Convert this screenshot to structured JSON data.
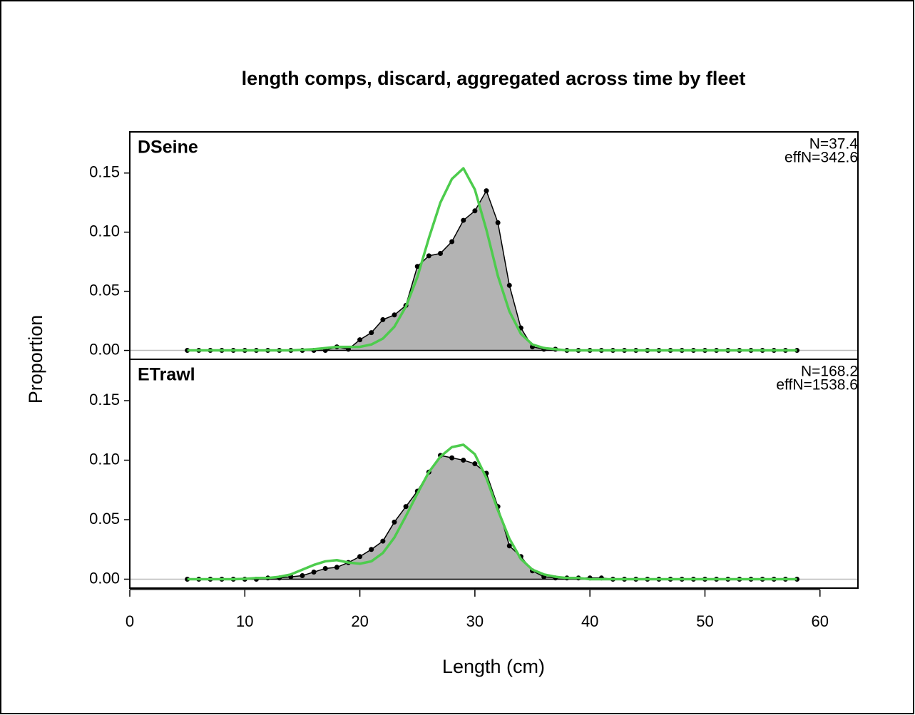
{
  "chart_data": {
    "type": "line",
    "title": "length comps, discard, aggregated across time by fleet",
    "x_label": "Length (cm)",
    "y_label": "Proportion",
    "x": [
      5,
      6,
      7,
      8,
      9,
      10,
      11,
      12,
      13,
      14,
      15,
      16,
      17,
      18,
      19,
      20,
      21,
      22,
      23,
      24,
      25,
      26,
      27,
      28,
      29,
      30,
      31,
      32,
      33,
      34,
      35,
      36,
      37,
      38,
      39,
      40,
      41,
      42,
      43,
      44,
      45,
      46,
      47,
      48,
      49,
      50,
      51,
      52,
      53,
      54,
      55,
      56,
      57,
      58
    ],
    "xlim": [
      0,
      63.3
    ],
    "xticks": [
      0,
      10,
      20,
      30,
      40,
      50,
      60
    ],
    "panels": [
      {
        "name": "DSeine",
        "annotations": [
          "N=37.4",
          "effN=342.6"
        ],
        "ylim": [
          -0.0075,
          0.1848
        ],
        "yticks": [
          {
            "value": 0,
            "label": "0.00"
          },
          {
            "value": 0.05,
            "label": "0.05"
          },
          {
            "value": 0.1,
            "label": "0.10"
          },
          {
            "value": 0.15,
            "label": "0.15"
          }
        ],
        "series": [
          {
            "color": "#000000",
            "fill": "#b3b3b3",
            "values": [
              0,
              0,
              0,
              0,
              0,
              0,
              0,
              0,
              0,
              0,
              0,
              0,
              0,
              0.003,
              0.001,
              0.009,
              0.015,
              0.026,
              0.03,
              0.038,
              0.071,
              0.08,
              0.082,
              0.092,
              0.11,
              0.118,
              0.135,
              0.108,
              0.055,
              0.019,
              0.003,
              0.001,
              0.001,
              0,
              0,
              0,
              0,
              0,
              0,
              0,
              0,
              0,
              0,
              0,
              0,
              0,
              0,
              0,
              0,
              0,
              0,
              0,
              0,
              0
            ]
          },
          {
            "color": "#4dcc4d",
            "values": [
              0,
              0,
              0,
              0,
              0,
              0,
              0,
              0,
              0,
              0,
              0.0005,
              0.001,
              0.002,
              0.003,
              0.003,
              0.003,
              0.005,
              0.01,
              0.02,
              0.037,
              0.062,
              0.095,
              0.125,
              0.145,
              0.154,
              0.136,
              0.102,
              0.063,
              0.033,
              0.014,
              0.005,
              0.002,
              0.001,
              0,
              0,
              0,
              0,
              0,
              0,
              0,
              0,
              0,
              0,
              0,
              0,
              0,
              0,
              0,
              0,
              0,
              0,
              0,
              0,
              0
            ]
          }
        ]
      },
      {
        "name": "ETrawl",
        "annotations": [
          "N=168.2",
          "effN=1538.6"
        ],
        "ylim": [
          -0.0075,
          0.1848
        ],
        "yticks": [
          {
            "value": 0,
            "label": "0.00"
          },
          {
            "value": 0.05,
            "label": "0.05"
          },
          {
            "value": 0.1,
            "label": "0.10"
          },
          {
            "value": 0.15,
            "label": "0.15"
          }
        ],
        "series": [
          {
            "color": "#000000",
            "fill": "#b3b3b3",
            "values": [
              0,
              0,
              0,
              0,
              0,
              0,
              0,
              0.001,
              0.001,
              0.002,
              0.003,
              0.006,
              0.009,
              0.01,
              0.014,
              0.019,
              0.025,
              0.032,
              0.048,
              0.061,
              0.074,
              0.09,
              0.104,
              0.102,
              0.1,
              0.097,
              0.089,
              0.061,
              0.028,
              0.019,
              0.007,
              0.002,
              0.001,
              0.001,
              0.001,
              0.001,
              0.001,
              0,
              0,
              0,
              0,
              0,
              0,
              0,
              0,
              0,
              0,
              0,
              0,
              0,
              0,
              0,
              0,
              0
            ]
          },
          {
            "color": "#4dcc4d",
            "values": [
              0,
              0,
              0,
              0,
              0,
              0.0003,
              0.001,
              0.001,
              0.002,
              0.004,
              0.008,
              0.012,
              0.015,
              0.016,
              0.014,
              0.013,
              0.015,
              0.022,
              0.035,
              0.053,
              0.072,
              0.09,
              0.103,
              0.111,
              0.113,
              0.105,
              0.085,
              0.058,
              0.034,
              0.017,
              0.008,
              0.004,
              0.002,
              0.001,
              0.001,
              0,
              0,
              0,
              0,
              0,
              0,
              0,
              0,
              0,
              0,
              0,
              0,
              0,
              0,
              0,
              0,
              0,
              0,
              0
            ]
          }
        ]
      }
    ]
  }
}
